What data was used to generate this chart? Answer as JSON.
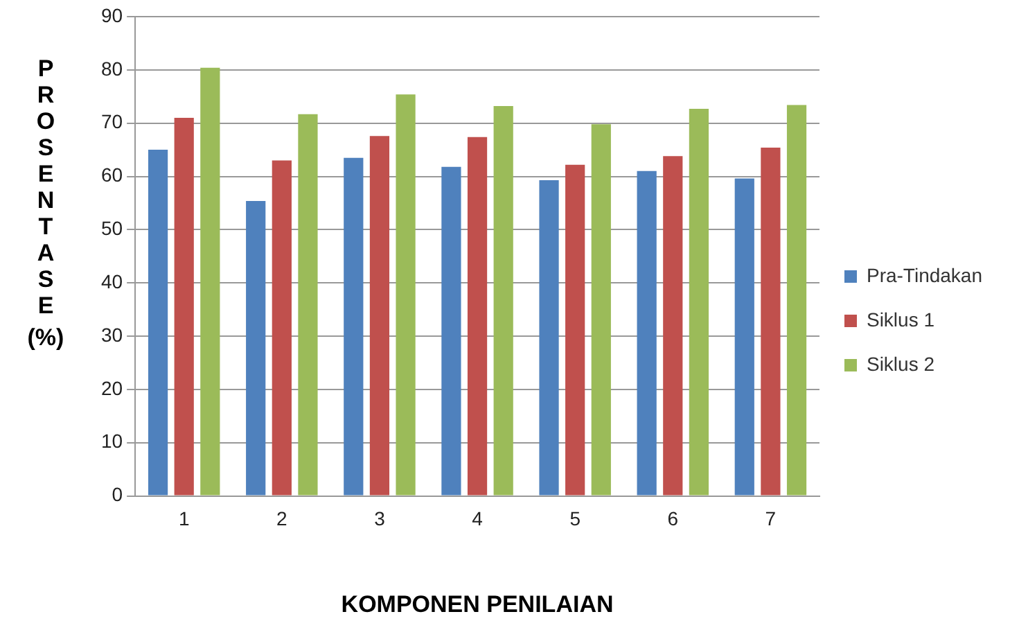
{
  "chart_data": {
    "type": "bar",
    "xlabel": "KOMPONEN PENILAIAN",
    "ylabel": "PROSENTASE (%)",
    "categories": [
      "1",
      "2",
      "3",
      "4",
      "5",
      "6",
      "7"
    ],
    "series": [
      {
        "name": "Pra-Tindakan",
        "color": "#4f81bd",
        "values": [
          65,
          55.4,
          63.5,
          61.8,
          59.3,
          61,
          59.6
        ]
      },
      {
        "name": "Siklus 1",
        "color": "#c0504d",
        "values": [
          71,
          63,
          67.6,
          67.4,
          62.2,
          63.8,
          65.4
        ]
      },
      {
        "name": "Siklus 2",
        "color": "#9bbb59",
        "values": [
          80.4,
          71.7,
          75.4,
          73.2,
          69.8,
          72.7,
          73.4
        ]
      }
    ],
    "ylim": [
      0,
      90
    ],
    "yticks": [
      0,
      10,
      20,
      30,
      40,
      50,
      60,
      70,
      80,
      90
    ],
    "grid": "y",
    "legend": "right"
  }
}
